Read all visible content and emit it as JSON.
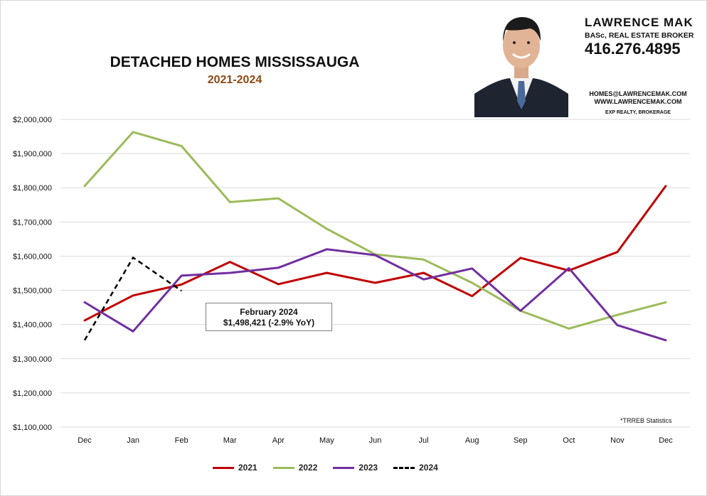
{
  "header": {
    "title": "DETACHED HOMES MISSISSAUGA",
    "subtitle": "2021-2024"
  },
  "contact": {
    "name": "LAWRENCE MAK",
    "role": "BASc, REAL ESTATE BROKER",
    "phone": "416.276.4895",
    "email": "HOMES@LAWRENCEMAK.COM",
    "website": "WWW.LAWRENCEMAK.COM",
    "brokerage": "EXP REALTY, BROKERAGE"
  },
  "callout": {
    "line1": "February 2024",
    "line2": "$1,498,421  (-2.9%  YoY)"
  },
  "source_note": "*TRREB Statistics",
  "chart_data": {
    "type": "line",
    "categories": [
      "Dec",
      "Jan",
      "Feb",
      "Mar",
      "Apr",
      "May",
      "Jun",
      "Jul",
      "Aug",
      "Sep",
      "Oct",
      "Nov",
      "Dec"
    ],
    "ylim": [
      1100000,
      2000000
    ],
    "yticks": [
      1100000,
      1200000,
      1300000,
      1400000,
      1500000,
      1600000,
      1700000,
      1800000,
      1900000,
      2000000
    ],
    "ytick_labels": [
      "$1,100,000",
      "$1,200,000",
      "$1,300,000",
      "$1,400,000",
      "$1,500,000",
      "$1,600,000",
      "$1,700,000",
      "$1,800,000",
      "$1,900,000",
      "$2,000,000"
    ],
    "grid": true,
    "legend_position": "bottom",
    "series": [
      {
        "name": "2021",
        "color": "#c00000",
        "style": "solid",
        "values": [
          1412000,
          1485000,
          1517000,
          1583000,
          1518000,
          1551000,
          1522000,
          1551000,
          1483000,
          1595000,
          1558000,
          1612000,
          1805000
        ]
      },
      {
        "name": "2022",
        "color": "#9bbb59",
        "style": "solid",
        "values": [
          1805000,
          1963000,
          1922000,
          1758000,
          1769000,
          1680000,
          1605000,
          1590000,
          1522000,
          1440000,
          1388000,
          1428000,
          1465000
        ]
      },
      {
        "name": "2023",
        "color": "#7030a0",
        "style": "solid",
        "values": [
          1465000,
          1380000,
          1543000,
          1551000,
          1566000,
          1620000,
          1603000,
          1532000,
          1564000,
          1440000,
          1565000,
          1398000,
          1354000
        ]
      },
      {
        "name": "2024",
        "color": "#000000",
        "style": "dashed",
        "values": [
          1354000,
          1596000,
          1498421,
          null,
          null,
          null,
          null,
          null,
          null,
          null,
          null,
          null,
          null
        ]
      }
    ]
  }
}
